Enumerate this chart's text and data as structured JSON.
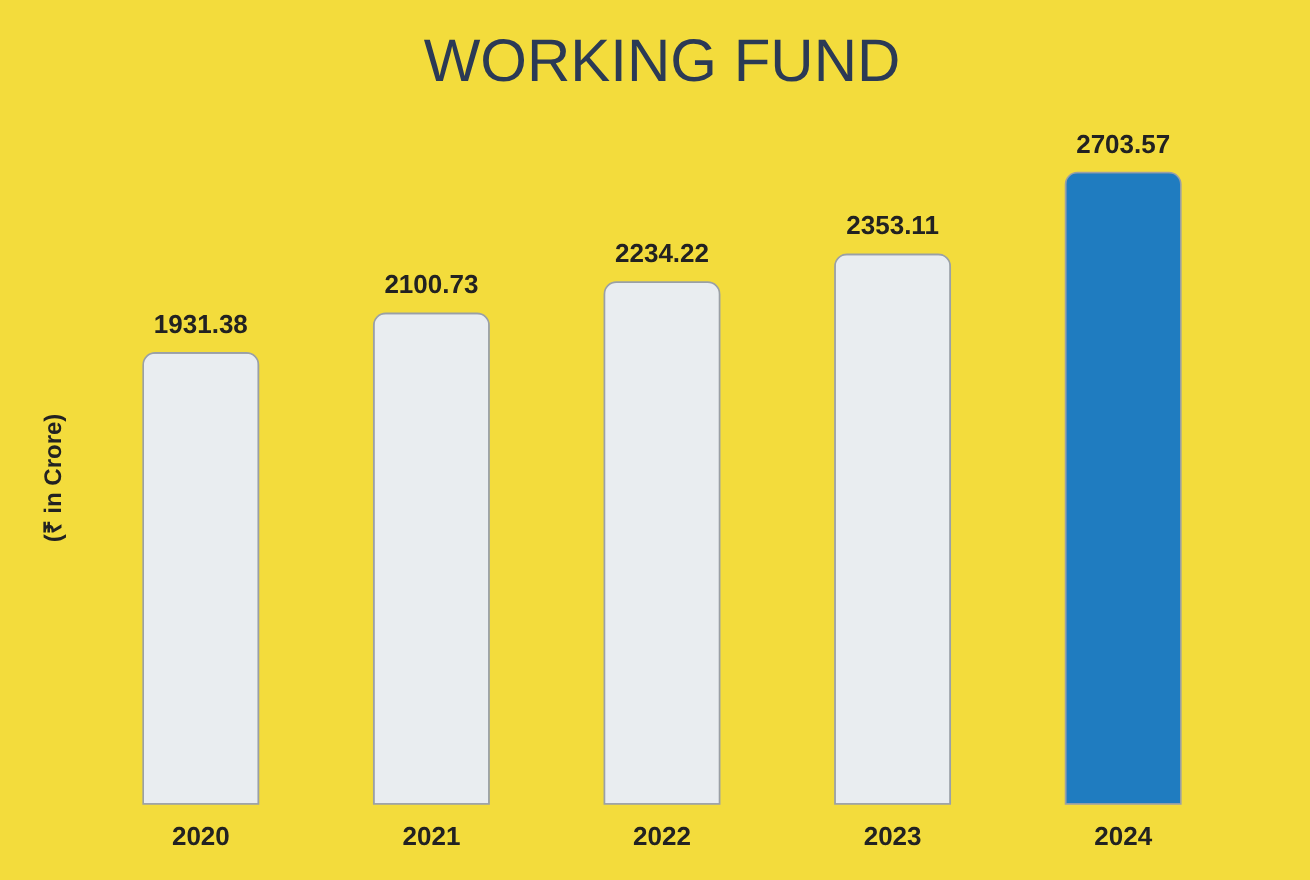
{
  "chart_data": {
    "type": "bar",
    "title": "WORKING FUND",
    "ylabel": "(₹ in Crore)",
    "categories": [
      "2020",
      "2021",
      "2022",
      "2023",
      "2024"
    ],
    "values": [
      1931.38,
      2100.73,
      2234.22,
      2353.11,
      2703.57
    ],
    "colors": [
      "#e9edf0",
      "#e9edf0",
      "#e9edf0",
      "#e9edf0",
      "#1f7cc0"
    ],
    "data_labels": true,
    "tick_labels": "x",
    "grid": false
  }
}
